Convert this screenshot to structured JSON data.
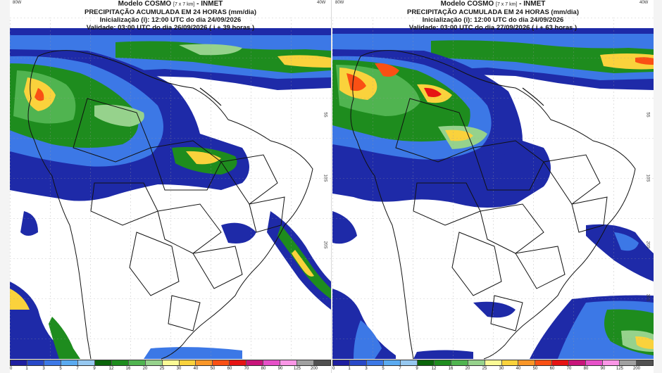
{
  "panels": [
    {
      "title": "Modelo COSMO",
      "resolution": "[7 x 7 km]",
      "agency": "- INMET",
      "product": "PRECIPITAÇÃO ACUMULADA EM 24 HORAS (mm/dia)",
      "init": "Inicialização (i): 12:00 UTC do dia 24/09/2026",
      "valid": "Validade: 03:00 UTC do dia 26/09/2026 ( i + 39 horas )",
      "lon_labels": [
        "80W",
        "40W"
      ],
      "lat_labels": [
        "5S",
        "10S",
        "20S"
      ]
    },
    {
      "title": "Modelo COSMO",
      "resolution": "[7 x 7 km]",
      "agency": "- INMET",
      "product": "PRECIPITAÇÃO ACUMULADA EM 24 HORAS (mm/dia)",
      "init": "Inicialização (i): 12:00 UTC do dia 24/09/2026",
      "valid": "Validade: 03:00 UTC do dia 27/09/2026 ( i + 63 horas )",
      "lon_labels": [
        "80W",
        "40W"
      ],
      "lat_labels": [
        "5S",
        "10S",
        "20S",
        "30S"
      ]
    }
  ],
  "colorbar": {
    "ticks": [
      "0",
      "1",
      "3",
      "5",
      "7",
      "9",
      "12",
      "16",
      "20",
      "25",
      "30",
      "40",
      "50",
      "60",
      "70",
      "80",
      "90",
      "125",
      "200"
    ],
    "colors": [
      "#1e1ea0",
      "#2848c8",
      "#3c78e6",
      "#5aaaf0",
      "#96c8f0",
      "#0a640a",
      "#1e8c1e",
      "#50b450",
      "#96d28c",
      "#fafa96",
      "#fad23c",
      "#fa9628",
      "#fa5014",
      "#e61414",
      "#c8147a",
      "#e650c8",
      "#fa96e6",
      "#a0a0a0",
      "#505050"
    ]
  }
}
